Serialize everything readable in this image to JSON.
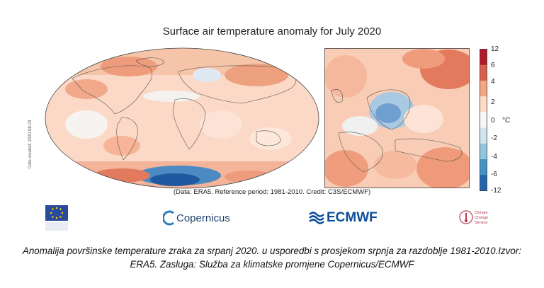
{
  "title": "Surface air temperature anomaly for July 2020",
  "date_created": "Date created: 2020-08-03",
  "data_line": "(Data: ERA5.  Reference period: 1981-2010.  Credit: C3S/ECMWF)",
  "colorbar": {
    "unit": "°C",
    "ticks": [
      "12",
      "6",
      "4",
      "2",
      "0",
      "-2",
      "-4",
      "-6",
      "-12"
    ],
    "colors": [
      "#b2182b",
      "#d6604d",
      "#f4a582",
      "#fddbc7",
      "#f7f7f7",
      "#d1e5f0",
      "#92c5de",
      "#4393c3",
      "#2166ac"
    ]
  },
  "logos": {
    "copernicus": "Copernicus",
    "ecmwf": "ECMWF",
    "c3s": "Climate Change Service"
  },
  "caption": "Anomalija površinske temperature zraka za srpanj 2020. u usporedbi s prosjekom srpnja za razdoblje 1981-2010.Izvor: ERA5. Zasluga: Služba za klimatske promjene Copernicus/ECMWF"
}
